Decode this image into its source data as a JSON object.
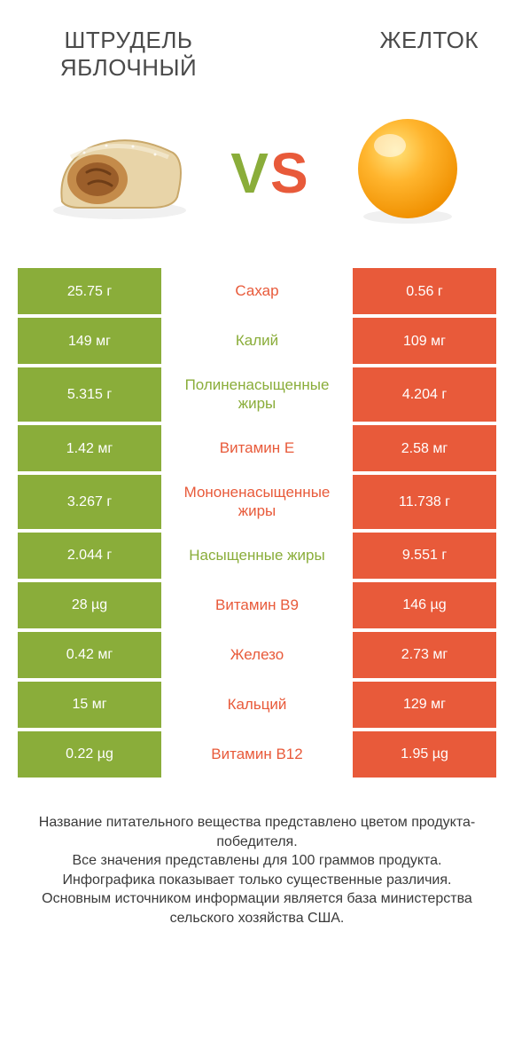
{
  "titles": {
    "left": "ШТРУДЕЛЬ ЯБЛОЧНЫЙ",
    "right": "ЖЕЛТОК"
  },
  "vs": {
    "v": "V",
    "s": "S"
  },
  "colors": {
    "green": "#8aad3a",
    "orange": "#e85a3a",
    "title": "#4a4a4a",
    "footer": "#3a3a3a",
    "bg": "#ffffff"
  },
  "rows": [
    {
      "left": "25.75 г",
      "label": "Сахар",
      "winner": "orange",
      "right": "0.56 г"
    },
    {
      "left": "149 мг",
      "label": "Калий",
      "winner": "green",
      "right": "109 мг"
    },
    {
      "left": "5.315 г",
      "label": "Полиненасыщенные жиры",
      "winner": "green",
      "right": "4.204 г"
    },
    {
      "left": "1.42 мг",
      "label": "Витамин E",
      "winner": "orange",
      "right": "2.58 мг"
    },
    {
      "left": "3.267 г",
      "label": "Мононенасыщенные жиры",
      "winner": "orange",
      "right": "11.738 г"
    },
    {
      "left": "2.044 г",
      "label": "Насыщенные жиры",
      "winner": "green",
      "right": "9.551 г"
    },
    {
      "left": "28 µg",
      "label": "Витамин B9",
      "winner": "orange",
      "right": "146 µg"
    },
    {
      "left": "0.42 мг",
      "label": "Железо",
      "winner": "orange",
      "right": "2.73 мг"
    },
    {
      "left": "15 мг",
      "label": "Кальций",
      "winner": "orange",
      "right": "129 мг"
    },
    {
      "left": "0.22 µg",
      "label": "Витамин B12",
      "winner": "orange",
      "right": "1.95 µg"
    }
  ],
  "footer": {
    "l1": "Название питательного вещества представлено цветом продукта-победителя.",
    "l2": "Все значения представлены для 100 граммов продукта.",
    "l3": "Инфографика показывает только существенные различия.",
    "l4": "Основным источником информации является база министерства сельского хозяйства США."
  }
}
